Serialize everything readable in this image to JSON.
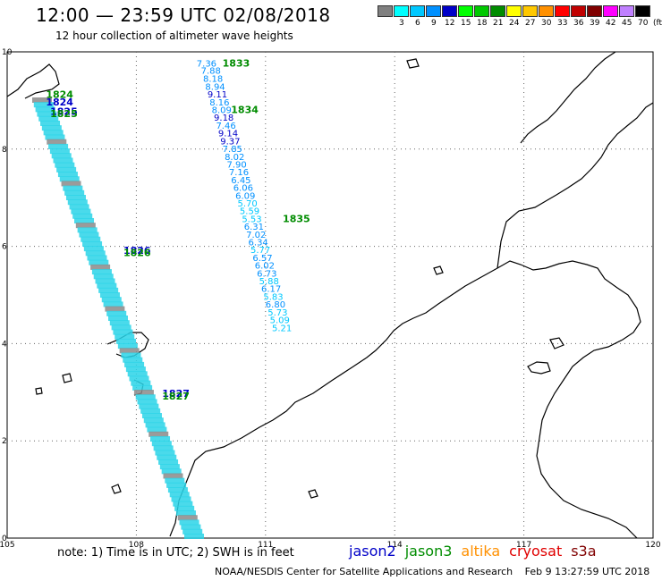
{
  "header": {
    "title": "12:00 — 23:59 UTC 02/08/2018",
    "subtitle": "12 hour collection of altimeter wave heights"
  },
  "legend": {
    "unit": "(ft)",
    "entries": [
      {
        "label": "",
        "color": "#808080"
      },
      {
        "label": "3",
        "color": "#00ffff"
      },
      {
        "label": "6",
        "color": "#00c8ff"
      },
      {
        "label": "9",
        "color": "#0090ff"
      },
      {
        "label": "12",
        "color": "#0000c8"
      },
      {
        "label": "15",
        "color": "#00ff00"
      },
      {
        "label": "18",
        "color": "#00c800"
      },
      {
        "label": "21",
        "color": "#008c00"
      },
      {
        "label": "24",
        "color": "#ffff00"
      },
      {
        "label": "27",
        "color": "#ffc800"
      },
      {
        "label": "30",
        "color": "#ff9000"
      },
      {
        "label": "33",
        "color": "#ff0000"
      },
      {
        "label": "36",
        "color": "#c00000"
      },
      {
        "label": "39",
        "color": "#800000"
      },
      {
        "label": "42",
        "color": "#ff00ff"
      },
      {
        "label": "45",
        "color": "#c080ff"
      },
      {
        "label": "70",
        "color": "#000000"
      }
    ]
  },
  "map": {
    "x_ticks": [
      "105",
      "108",
      "111",
      "114",
      "117",
      "120"
    ],
    "y_ticks": [
      "0",
      "2",
      "4",
      "6",
      "8",
      "10"
    ],
    "lon_range": [
      105,
      120
    ],
    "lat_range": [
      0,
      10
    ]
  },
  "tracks": [
    {
      "satellite": "jason3",
      "color": "#00c8ff",
      "points": [
        {
          "lon": 109.4,
          "lat": 9.7,
          "value": "7.36"
        },
        {
          "lon": 109.5,
          "lat": 9.55,
          "value": "7.88"
        },
        {
          "lon": 109.55,
          "lat": 9.38,
          "value": "8.18"
        },
        {
          "lon": 109.6,
          "lat": 9.22,
          "value": "8.94"
        },
        {
          "lon": 109.65,
          "lat": 9.06,
          "value": "9.11"
        },
        {
          "lon": 109.7,
          "lat": 8.9,
          "value": "8.16"
        },
        {
          "lon": 109.75,
          "lat": 8.74,
          "value": "8.09"
        },
        {
          "lon": 109.8,
          "lat": 8.58,
          "value": "9.18"
        },
        {
          "lon": 109.85,
          "lat": 8.42,
          "value": "7.46"
        },
        {
          "lon": 109.9,
          "lat": 8.26,
          "value": "9.14"
        },
        {
          "lon": 109.95,
          "lat": 8.1,
          "value": "9.37"
        },
        {
          "lon": 110.0,
          "lat": 7.94,
          "value": "7.85"
        },
        {
          "lon": 110.05,
          "lat": 7.78,
          "value": "8.02"
        },
        {
          "lon": 110.1,
          "lat": 7.62,
          "value": "7.90"
        },
        {
          "lon": 110.15,
          "lat": 7.46,
          "value": "7.16"
        },
        {
          "lon": 110.2,
          "lat": 7.3,
          "value": "6.45"
        },
        {
          "lon": 110.25,
          "lat": 7.14,
          "value": "6.06"
        },
        {
          "lon": 110.3,
          "lat": 6.98,
          "value": "6.09"
        },
        {
          "lon": 110.35,
          "lat": 6.82,
          "value": "5.70"
        },
        {
          "lon": 110.4,
          "lat": 6.66,
          "value": "5.59"
        },
        {
          "lon": 110.45,
          "lat": 6.5,
          "value": "5.53"
        },
        {
          "lon": 110.5,
          "lat": 6.34,
          "value": "6.31"
        },
        {
          "lon": 110.55,
          "lat": 6.18,
          "value": "7.02"
        },
        {
          "lon": 110.6,
          "lat": 6.02,
          "value": "6.34"
        },
        {
          "lon": 110.65,
          "lat": 5.86,
          "value": "5.77"
        },
        {
          "lon": 110.7,
          "lat": 5.7,
          "value": "6.57"
        },
        {
          "lon": 110.75,
          "lat": 5.54,
          "value": "6.02"
        },
        {
          "lon": 110.8,
          "lat": 5.38,
          "value": "6.73"
        },
        {
          "lon": 110.85,
          "lat": 5.22,
          "value": "5.88"
        },
        {
          "lon": 110.9,
          "lat": 5.06,
          "value": "6.17"
        },
        {
          "lon": 110.95,
          "lat": 4.9,
          "value": "5.83"
        },
        {
          "lon": 111.0,
          "lat": 4.74,
          "value": "6.80"
        },
        {
          "lon": 111.05,
          "lat": 4.58,
          "value": "5.73"
        },
        {
          "lon": 111.1,
          "lat": 4.42,
          "value": "5.09"
        },
        {
          "lon": 111.15,
          "lat": 4.26,
          "value": "5.21"
        }
      ]
    }
  ],
  "time_labels": [
    {
      "text": "1833",
      "lon": 110.0,
      "lat": 9.7,
      "color": "#008c00"
    },
    {
      "text": "1834",
      "lon": 110.2,
      "lat": 8.74,
      "color": "#008c00"
    },
    {
      "text": "1835",
      "lon": 111.4,
      "lat": 6.5,
      "color": "#008c00"
    },
    {
      "text": "1824",
      "lon": 105.9,
      "lat": 9.05,
      "color": "#008c00"
    },
    {
      "text": "1824",
      "lon": 105.9,
      "lat": 8.9,
      "color": "#0000c8"
    },
    {
      "text": "1825",
      "lon": 106.0,
      "lat": 8.7,
      "color": "#0000c8"
    },
    {
      "text": "1825",
      "lon": 106.0,
      "lat": 8.66,
      "color": "#008c00"
    },
    {
      "text": "1826",
      "lon": 107.7,
      "lat": 5.85,
      "color": "#0000c8"
    },
    {
      "text": "1826",
      "lon": 107.7,
      "lat": 5.8,
      "color": "#008c00"
    },
    {
      "text": "1827",
      "lon": 108.6,
      "lat": 2.9,
      "color": "#0000c8"
    },
    {
      "text": "1827",
      "lon": 108.6,
      "lat": 2.85,
      "color": "#008c00"
    }
  ],
  "footer": {
    "note": "note:  1) Time is in UTC;  2) SWH is in feet",
    "satellites": [
      {
        "name": "jason2",
        "color": "#0000c8"
      },
      {
        "name": "jason3",
        "color": "#008c00"
      },
      {
        "name": "altika",
        "color": "#ff9000"
      },
      {
        "name": "cryosat",
        "color": "#e00000"
      },
      {
        "name": "s3a",
        "color": "#800000"
      }
    ],
    "credit": "NOAA/NESDIS Center for Satellite Applications and Research",
    "timestamp": "Feb  9 13:27:59 UTC 2018"
  }
}
